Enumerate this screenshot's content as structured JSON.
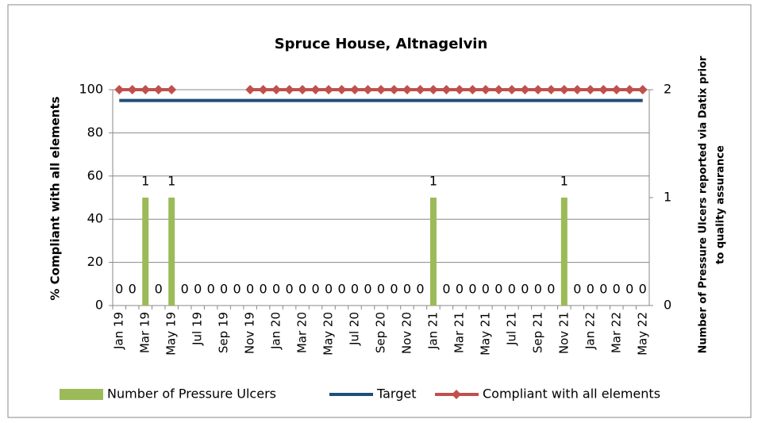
{
  "chart_data": {
    "type": "bar_line_combo",
    "title": "Spruce House, Altnagelvin",
    "ylabel": "% Compliant with all elements",
    "y2label": [
      "Number of Pressure Ulcers reported via Datix prior",
      "to quality assurance"
    ],
    "categories": [
      "Jan 19",
      null,
      "Mar 19",
      null,
      "May 19",
      null,
      "Jul 19",
      null,
      "Sep 19",
      null,
      "Nov 19",
      null,
      "Jan 20",
      null,
      "Mar 20",
      null,
      "May 20",
      null,
      "Jul 20",
      null,
      "Sep 20",
      null,
      "Nov 20",
      null,
      "Jan 21",
      null,
      "Mar 21",
      null,
      "May 21",
      null,
      "Jul 21",
      null,
      "Sep 21",
      null,
      "Nov 21",
      null,
      "Jan 22",
      null,
      "Mar 22",
      null,
      "May 22"
    ],
    "ylim": [
      0,
      100
    ],
    "yticks": [
      0,
      20,
      40,
      60,
      80,
      100
    ],
    "y2lim": [
      0,
      2
    ],
    "y2ticks": [
      0,
      1,
      2
    ],
    "grid": true,
    "legend": "bottom",
    "series": [
      {
        "name": "Number of Pressure Ulcers",
        "type": "bar",
        "axis": "y2",
        "color": "#9bbb59",
        "values": [
          0,
          0,
          1,
          0,
          1,
          0,
          0,
          0,
          0,
          0,
          0,
          0,
          0,
          0,
          0,
          0,
          0,
          0,
          0,
          0,
          0,
          0,
          0,
          0,
          1,
          0,
          0,
          0,
          0,
          0,
          0,
          0,
          0,
          0,
          1,
          0,
          0,
          0,
          0,
          0,
          0
        ]
      },
      {
        "name": "Target",
        "type": "line",
        "color": "#1f4e79",
        "values": [
          95,
          95,
          95,
          95,
          95,
          95,
          95,
          95,
          95,
          95,
          95,
          95,
          95,
          95,
          95,
          95,
          95,
          95,
          95,
          95,
          95,
          95,
          95,
          95,
          95,
          95,
          95,
          95,
          95,
          95,
          95,
          95,
          95,
          95,
          95,
          95,
          95,
          95,
          95,
          95,
          95
        ]
      },
      {
        "name": "Compliant with all elements",
        "type": "line",
        "marker": "diamond",
        "color": "#c0504d",
        "values": [
          100,
          100,
          100,
          100,
          100,
          null,
          null,
          null,
          null,
          null,
          100,
          100,
          100,
          100,
          100,
          100,
          100,
          100,
          100,
          100,
          100,
          100,
          100,
          100,
          100,
          100,
          100,
          100,
          100,
          100,
          100,
          100,
          100,
          100,
          100,
          100,
          100,
          100,
          100,
          100,
          100
        ]
      }
    ]
  }
}
